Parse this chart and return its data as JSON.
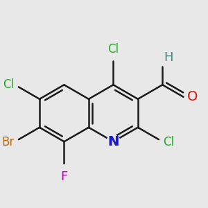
{
  "background_color": "#e8e8e8",
  "bond_color": "#1a1a1a",
  "bond_width": 1.8,
  "atoms": {
    "N": {
      "label": "N",
      "color": "#1a1acc",
      "fontsize": 14
    },
    "O": {
      "label": "O",
      "color": "#dd1100",
      "fontsize": 14
    },
    "Cl1": {
      "label": "Cl",
      "color": "#22aa22",
      "fontsize": 12
    },
    "Cl2": {
      "label": "Cl",
      "color": "#22aa22",
      "fontsize": 12
    },
    "Cl3": {
      "label": "Cl",
      "color": "#22aa22",
      "fontsize": 12
    },
    "Br": {
      "label": "Br",
      "color": "#cc6600",
      "fontsize": 12
    },
    "F": {
      "label": "F",
      "color": "#bb00bb",
      "fontsize": 13
    },
    "H": {
      "label": "H",
      "color": "#448888",
      "fontsize": 13
    }
  }
}
